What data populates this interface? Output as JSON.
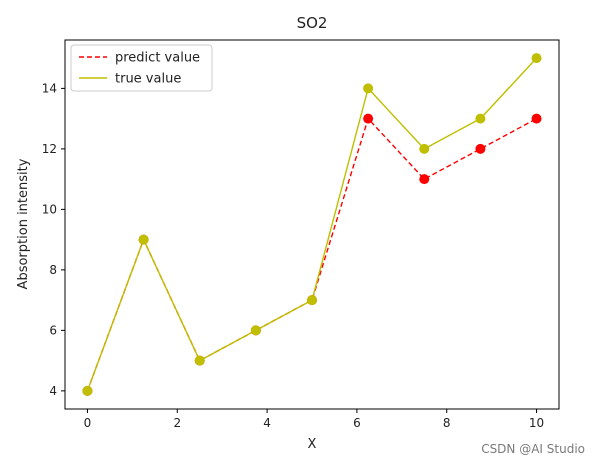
{
  "chart_data": {
    "type": "line",
    "title": "SO2",
    "xlabel": "X",
    "ylabel": "Absorption intensity",
    "xlim": [
      -0.5,
      10.5
    ],
    "ylim": [
      3.4,
      15.6
    ],
    "xticks": [
      0,
      2,
      4,
      6,
      8,
      10
    ],
    "yticks": [
      4,
      6,
      8,
      10,
      12,
      14
    ],
    "x": [
      0,
      1.25,
      2.5,
      3.75,
      5,
      6.25,
      7.5,
      8.75,
      10
    ],
    "series": [
      {
        "name": "predict value",
        "values": [
          4,
          9,
          5,
          6,
          7,
          13,
          11,
          12,
          13
        ],
        "color": "#ff0000",
        "line_style": "dashed"
      },
      {
        "name": "true value",
        "values": [
          4,
          9,
          5,
          6,
          7,
          14,
          12,
          13,
          15
        ],
        "color": "#bfbf00",
        "line_style": "solid"
      }
    ],
    "legend": "top-left",
    "grid": false
  },
  "watermark": "CSDN @AI Studio"
}
